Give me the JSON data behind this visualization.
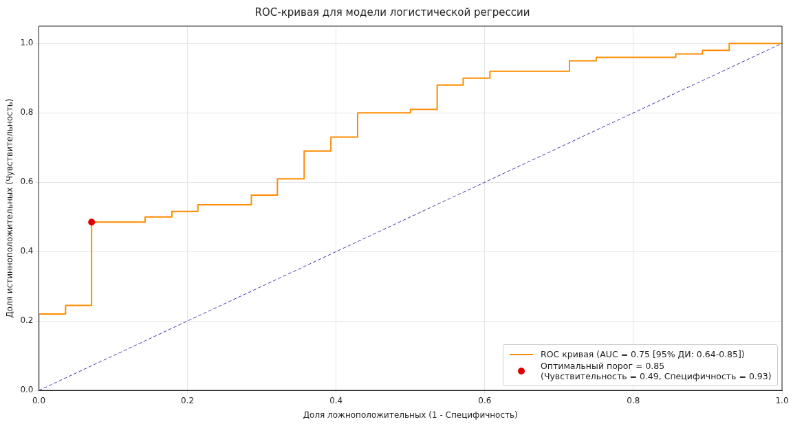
{
  "chart_data": {
    "type": "line",
    "title": "ROC-кривая для модели логистической регрессии",
    "xlabel": "Доля ложноположительных (1 - Специфичность)",
    "ylabel": "Доля истинноположительных (Чувствительность)",
    "xlim": [
      0,
      1
    ],
    "ylim": [
      0,
      1.05
    ],
    "xticks": [
      {
        "value": 0,
        "label": "0.0"
      },
      {
        "value": 0.2,
        "label": "0.2"
      },
      {
        "value": 0.4,
        "label": "0.4"
      },
      {
        "value": 0.6,
        "label": "0.6"
      },
      {
        "value": 0.8,
        "label": "0.8"
      },
      {
        "value": 1,
        "label": "1.0"
      }
    ],
    "yticks": [
      {
        "value": 0,
        "label": "0.0"
      },
      {
        "value": 0.2,
        "label": "0.2"
      },
      {
        "value": 0.4,
        "label": "0.4"
      },
      {
        "value": 0.6,
        "label": "0.6"
      },
      {
        "value": 0.8,
        "label": "0.8"
      },
      {
        "value": 1,
        "label": "1.0"
      }
    ],
    "grid": true,
    "legend": "bottom right",
    "series": [
      {
        "type": "step",
        "name": "ROC кривая (AUC = 0.75 [95% ДИ: 0.64-0.85])",
        "color": "#ff8c00",
        "line_style": "solid",
        "marker": "none",
        "x": [
          0,
          0,
          0.036,
          0.071,
          0.143,
          0.179,
          0.214,
          0.286,
          0.321,
          0.357,
          0.393,
          0.429,
          0.5,
          0.536,
          0.571,
          0.607,
          0.714,
          0.75,
          0.857,
          0.893,
          0.929,
          1
        ],
        "values": [
          0,
          0.22,
          0.245,
          0.485,
          0.5,
          0.516,
          0.535,
          0.563,
          0.61,
          0.69,
          0.73,
          0.8,
          0.81,
          0.88,
          0.9,
          0.92,
          0.95,
          0.96,
          0.97,
          0.98,
          1,
          1
        ]
      },
      {
        "type": "line",
        "color": "#3b3ba8",
        "line_style": "dashed",
        "marker": "none",
        "x": [
          0,
          1
        ],
        "values": [
          0,
          1
        ]
      },
      {
        "type": "scatter",
        "name": "Оптимальный порог = 0.85\n(Чувствительность = 0.49, Специфичность = 0.93)",
        "color": "#e00000",
        "marker": "circle",
        "x": [
          0.071
        ],
        "values": [
          0.485
        ]
      }
    ]
  }
}
